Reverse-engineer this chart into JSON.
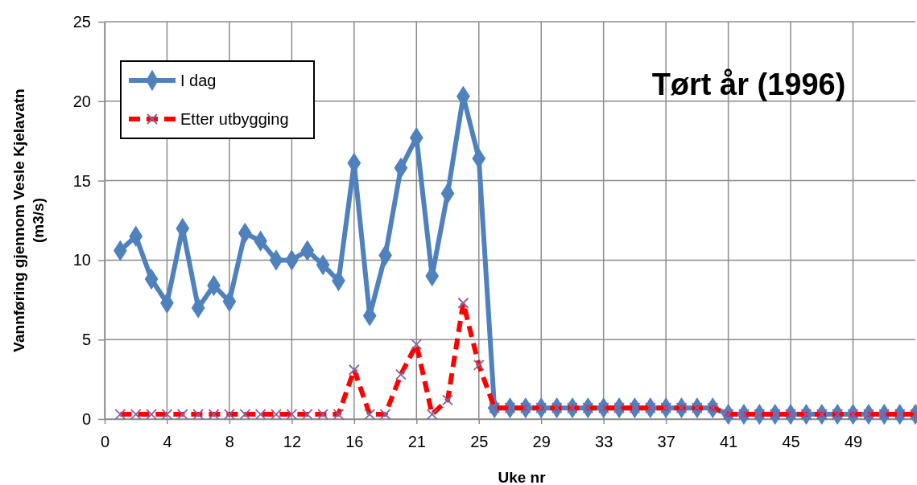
{
  "chart_data": {
    "type": "line",
    "title": "Tørt år (1996)",
    "xlabel": "Uke nr",
    "ylabel": "Vannføring gjennom Vesle Kjelavatn\n(m3/s)",
    "categories": [
      "0",
      null,
      null,
      null,
      "4",
      null,
      null,
      null,
      "8",
      null,
      null,
      null,
      "12",
      null,
      null,
      null,
      "16",
      null,
      null,
      null,
      "21",
      null,
      null,
      null,
      "25",
      null,
      null,
      null,
      "29",
      null,
      null,
      null,
      "33",
      null,
      null,
      null,
      "37",
      null,
      null,
      null,
      "41",
      null,
      null,
      null,
      "45",
      null,
      null,
      null,
      "49",
      null,
      null,
      null,
      null
    ],
    "series": [
      {
        "name": "I dag",
        "color": "#4f81bd",
        "marker": "diamond",
        "line_style": "solid",
        "values": [
          null,
          10.6,
          11.5,
          8.8,
          7.3,
          12.0,
          7.0,
          8.4,
          7.4,
          11.7,
          11.2,
          10.0,
          10.0,
          10.6,
          9.7,
          8.7,
          16.1,
          6.5,
          10.3,
          15.8,
          17.7,
          9.0,
          14.2,
          20.3,
          16.4,
          0.7,
          0.7,
          0.7,
          0.7,
          0.7,
          0.7,
          0.7,
          0.7,
          0.7,
          0.7,
          0.7,
          0.7,
          0.7,
          0.7,
          0.7,
          0.3,
          0.3,
          0.3,
          0.3,
          0.3,
          0.3,
          0.3,
          0.3,
          0.3,
          0.3,
          0.3,
          0.3,
          0.3
        ]
      },
      {
        "name": "Etter utbygging",
        "color": "#ff0000",
        "marker": "cross",
        "line_style": "dashed",
        "values": [
          null,
          0.3,
          0.3,
          0.3,
          0.3,
          0.3,
          0.3,
          0.3,
          0.3,
          0.3,
          0.3,
          0.3,
          0.3,
          0.3,
          0.3,
          0.3,
          3.1,
          0.3,
          0.3,
          2.8,
          4.7,
          0.3,
          1.2,
          7.3,
          3.4,
          0.7,
          0.7,
          0.7,
          0.7,
          0.7,
          0.7,
          0.7,
          0.7,
          0.7,
          0.7,
          0.7,
          0.7,
          0.7,
          0.7,
          0.7,
          0.3,
          0.3,
          0.3,
          0.3,
          0.3,
          0.3,
          0.3,
          0.3,
          0.3,
          0.3,
          0.3,
          0.3,
          0.3
        ]
      }
    ],
    "ylim": [
      0,
      25
    ],
    "yticks": [
      0,
      5,
      10,
      15,
      20,
      25
    ],
    "grid": true,
    "legend": "top left"
  }
}
